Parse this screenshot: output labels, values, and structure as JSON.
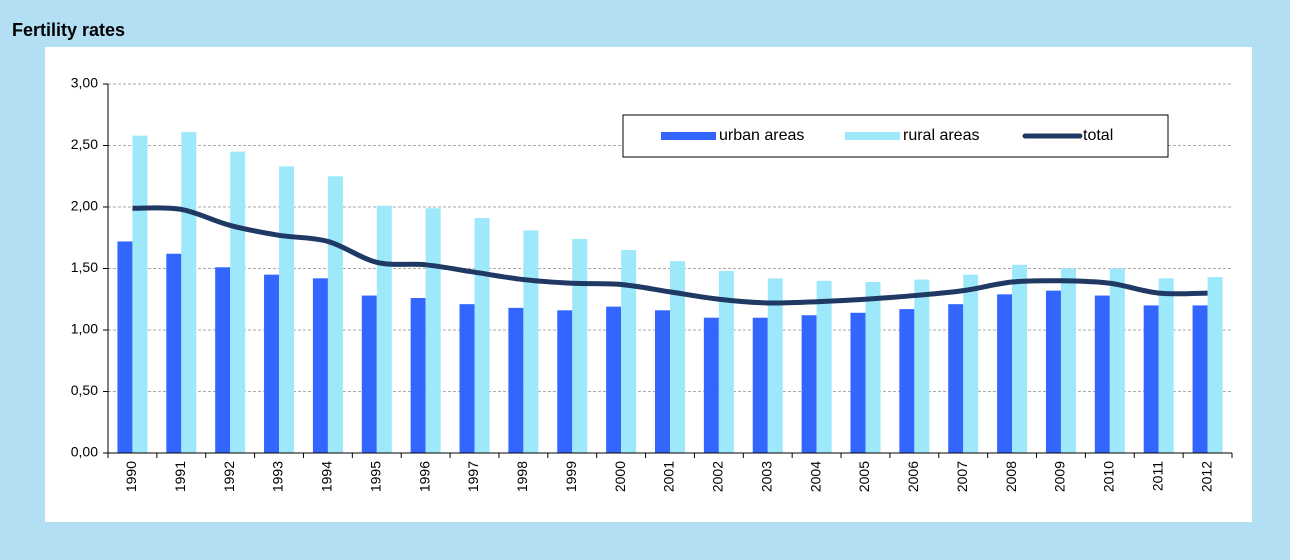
{
  "chart_data": {
    "type": "bar_line",
    "title": "Fertility rates",
    "categories": [
      "1990",
      "1991",
      "1992",
      "1993",
      "1994",
      "1995",
      "1996",
      "1997",
      "1998",
      "1999",
      "2000",
      "2001",
      "2002",
      "2003",
      "2004",
      "2005",
      "2006",
      "2007",
      "2008",
      "2009",
      "2010",
      "2011",
      "2012"
    ],
    "series": [
      {
        "name": "urban areas",
        "type": "bar",
        "color": "#3366ff",
        "values": [
          1.72,
          1.62,
          1.51,
          1.45,
          1.42,
          1.28,
          1.26,
          1.21,
          1.18,
          1.16,
          1.19,
          1.16,
          1.1,
          1.1,
          1.12,
          1.14,
          1.17,
          1.21,
          1.29,
          1.32,
          1.28,
          1.2,
          1.2
        ]
      },
      {
        "name": "rural areas",
        "type": "bar",
        "color": "#9ee8fb",
        "values": [
          2.58,
          2.61,
          2.45,
          2.33,
          2.25,
          2.01,
          1.99,
          1.91,
          1.81,
          1.74,
          1.65,
          1.56,
          1.48,
          1.42,
          1.4,
          1.39,
          1.41,
          1.45,
          1.53,
          1.5,
          1.5,
          1.42,
          1.43
        ]
      },
      {
        "name": "total",
        "type": "line",
        "color": "#1f3864",
        "values": [
          1.99,
          1.98,
          1.85,
          1.77,
          1.72,
          1.55,
          1.53,
          1.47,
          1.41,
          1.38,
          1.37,
          1.31,
          1.25,
          1.22,
          1.23,
          1.25,
          1.28,
          1.32,
          1.39,
          1.4,
          1.38,
          1.3,
          1.3
        ]
      }
    ],
    "ylim": [
      0,
      3
    ],
    "yticks": [
      {
        "value": 0,
        "label": "0,00"
      },
      {
        "value": 0.5,
        "label": "0,50"
      },
      {
        "value": 1,
        "label": "1,00"
      },
      {
        "value": 1.5,
        "label": "1,50"
      },
      {
        "value": 2,
        "label": "2,00"
      },
      {
        "value": 2.5,
        "label": "2,50"
      },
      {
        "value": 3,
        "label": "3,00"
      }
    ],
    "grid": true,
    "legend": "top-right"
  }
}
